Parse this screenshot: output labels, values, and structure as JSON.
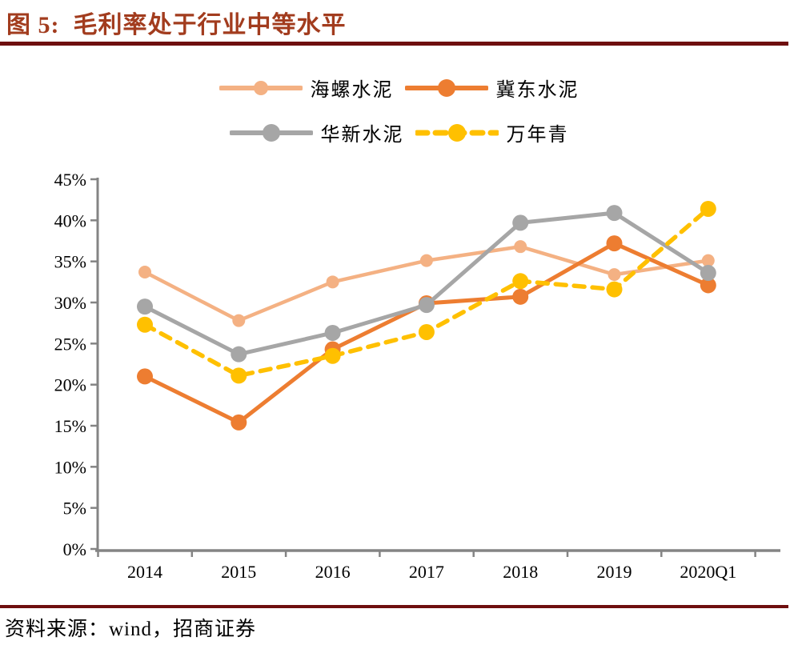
{
  "title": {
    "label": "图 5:  毛利率处于行业中等水平"
  },
  "footer": {
    "source_label": "资料来源：wind，招商证券"
  },
  "colors": {
    "title_text": "#A23C1E",
    "rule": "#6E0F0F",
    "axis": "#848484",
    "label_text": "#000000",
    "series_conch": "#F4B183",
    "series_jidong": "#ED7D31",
    "series_huaxin": "#A6A6A6",
    "series_wannianqing": "#FFC000"
  },
  "chart_data": {
    "type": "line",
    "title": "毛利率处于行业中等水平",
    "categories": [
      "2014",
      "2015",
      "2016",
      "2017",
      "2018",
      "2019",
      "2020Q1"
    ],
    "series": [
      {
        "name": "海螺水泥",
        "color": "#F4B183",
        "style": "solid",
        "marker_radius": 8,
        "line_width": 4.5,
        "values": [
          33.7,
          27.8,
          32.5,
          35.1,
          36.8,
          33.4,
          35.1
        ]
      },
      {
        "name": "冀东水泥",
        "color": "#ED7D31",
        "style": "solid",
        "marker_radius": 10,
        "line_width": 5,
        "values": [
          21.0,
          15.4,
          24.3,
          29.9,
          30.7,
          37.2,
          32.1
        ]
      },
      {
        "name": "华新水泥",
        "color": "#A6A6A6",
        "style": "solid",
        "marker_radius": 10,
        "line_width": 5,
        "values": [
          29.5,
          23.7,
          26.3,
          29.7,
          39.7,
          40.9,
          33.6
        ]
      },
      {
        "name": "万年青",
        "color": "#FFC000",
        "style": "dashed",
        "marker_radius": 10,
        "line_width": 5.5,
        "values": [
          27.3,
          21.1,
          23.5,
          26.4,
          32.6,
          31.6,
          41.4
        ]
      }
    ],
    "ylim": [
      0,
      45
    ],
    "ytick_step": 5,
    "ytick_labels": [
      "0%",
      "5%",
      "10%",
      "15%",
      "20%",
      "25%",
      "30%",
      "35%",
      "40%",
      "45%"
    ],
    "unit": "%",
    "grid": false,
    "legend_position": "top",
    "legend_rows": [
      [
        0,
        1
      ],
      [
        2,
        3
      ]
    ]
  }
}
